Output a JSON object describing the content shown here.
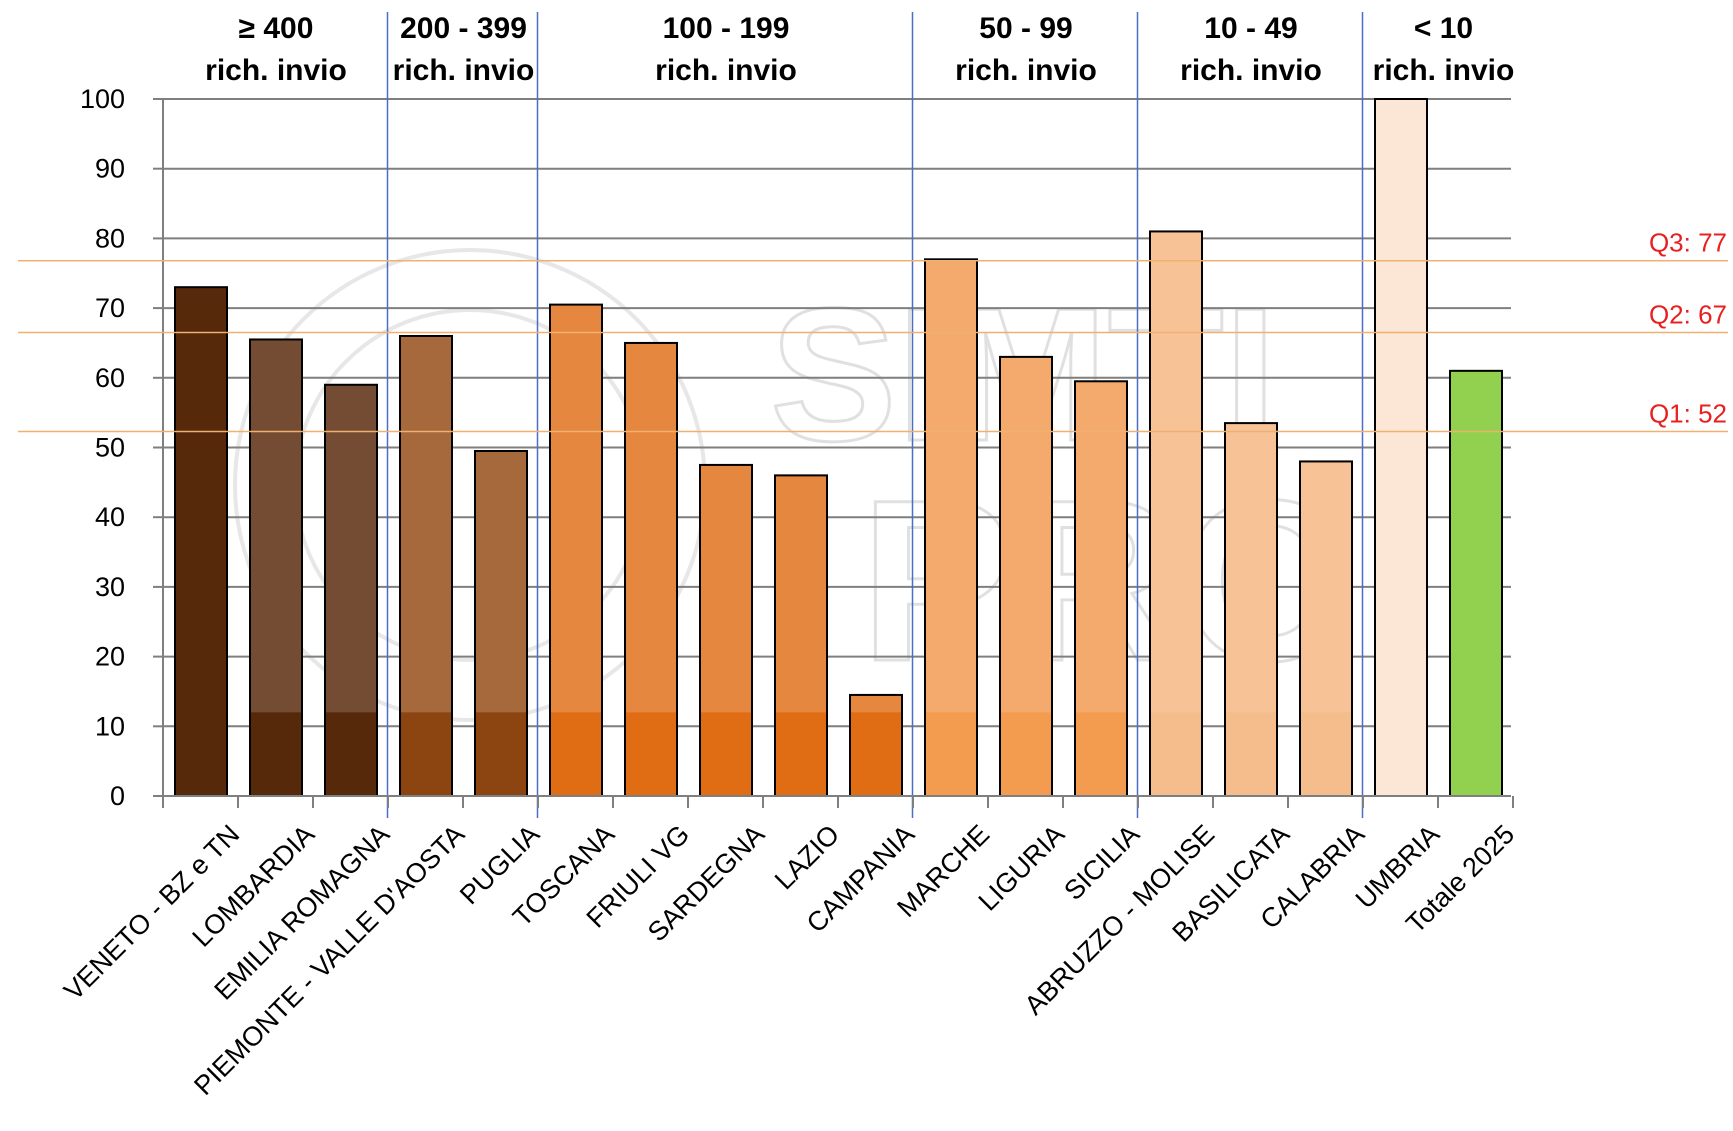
{
  "chart_data": {
    "type": "bar",
    "title": "",
    "xlabel": "",
    "ylabel": "",
    "ylim": [
      0,
      100
    ],
    "yticks": [
      0,
      10,
      20,
      30,
      40,
      50,
      60,
      70,
      80,
      90,
      100
    ],
    "grid": true,
    "categories": [
      "VENETO - BZ e TN",
      "LOMBARDIA",
      "EMILIA ROMAGNA",
      "PIEMONTE - VALLE D'AOSTA",
      "PUGLIA",
      "TOSCANA",
      "FRIULI VG",
      "SARDEGNA",
      "LAZIO",
      "CAMPANIA",
      "MARCHE",
      "LIGURIA",
      "SICILIA",
      "ABRUZZO - MOLISE",
      "BASILICATA",
      "CALABRIA",
      "UMBRIA",
      "Totale 2025"
    ],
    "values": [
      73,
      65.5,
      59,
      66,
      49.5,
      70.5,
      65,
      47.5,
      46,
      14.5,
      77,
      63,
      59.5,
      81,
      53.5,
      48,
      100,
      61
    ],
    "bar_colors": [
      "#56290a",
      "#744b33",
      "#744b33",
      "#a5693b",
      "#a5693b",
      "#e5873e",
      "#e5873e",
      "#e5873e",
      "#e5873e",
      "#e5873e",
      "#f4aa6c",
      "#f4aa6c",
      "#f4aa6c",
      "#f7c396",
      "#f7c396",
      "#f7c396",
      "#fce6d5",
      "#92d050"
    ],
    "bar_base_colors": [
      "#56290a",
      "#56290a",
      "#56290a",
      "#8c4410",
      "#8c4410",
      "#e06c14",
      "#e06c14",
      "#e06c14",
      "#e06c14",
      "#e06c14",
      "#f39c50",
      "#f39c50",
      "#f39c50",
      "#f6bd8c",
      "#f6bd8c",
      "#f6bd8c",
      "#fce6d5",
      "#92d050"
    ],
    "groups": [
      {
        "line1": "≥ 400",
        "line2": "rich. invio",
        "start": 0,
        "end": 2
      },
      {
        "line1": "200 - 399",
        "line2": "rich. invio",
        "start": 3,
        "end": 4
      },
      {
        "line1": "100 - 199",
        "line2": "rich. invio",
        "start": 5,
        "end": 9
      },
      {
        "line1": "50 - 99",
        "line2": "rich. invio",
        "start": 10,
        "end": 12
      },
      {
        "line1": "10 - 49",
        "line2": "rich. invio",
        "start": 13,
        "end": 15
      },
      {
        "line1": "< 10",
        "line2": "rich. invio",
        "start": 16,
        "end": 17
      }
    ],
    "quartile_lines": [
      {
        "label": "Q3: 77",
        "value": 76.8
      },
      {
        "label": "Q2: 67",
        "value": 66.5
      },
      {
        "label": "Q1: 52",
        "value": 52.3
      }
    ],
    "colors": {
      "quartile_line": "#f0b070",
      "quartile_label": "#e82020",
      "group_separator": "#4a6fc7",
      "grid": "#7f7f7f",
      "bar_outline": "#000000"
    },
    "watermark": "SIMTI PRO"
  }
}
